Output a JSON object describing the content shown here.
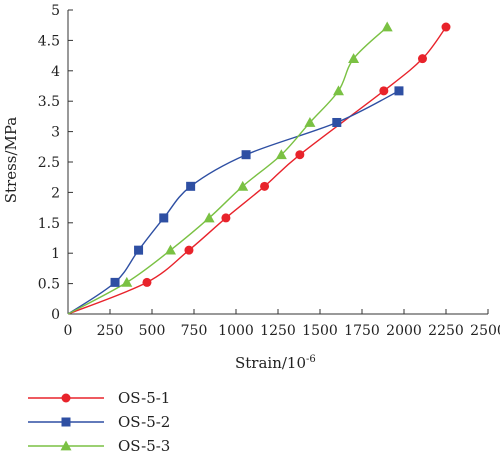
{
  "chart_data": {
    "type": "line",
    "xlabel": "Strain/10",
    "xlabel_sup": "-6",
    "ylabel": "Stress/MPa",
    "xlim": [
      0,
      2500
    ],
    "ylim": [
      0,
      5
    ],
    "xticks": [
      0,
      250,
      500,
      750,
      1000,
      1250,
      1500,
      1750,
      2000,
      2250,
      2500
    ],
    "yticks": [
      0,
      0.5,
      1,
      1.5,
      2,
      2.5,
      3,
      3.5,
      4,
      4.5,
      5
    ],
    "grid": false,
    "legend_position": "bottom-left",
    "series": [
      {
        "name": "OS-5-1",
        "color": "#e8232b",
        "marker": "circle",
        "points": [
          [
            0,
            0
          ],
          [
            470,
            0.52
          ],
          [
            720,
            1.05
          ],
          [
            940,
            1.58
          ],
          [
            1170,
            2.1
          ],
          [
            1380,
            2.62
          ],
          [
            1880,
            3.67
          ],
          [
            2110,
            4.2
          ],
          [
            2250,
            4.72
          ]
        ]
      },
      {
        "name": "OS-5-2",
        "color": "#2e4fa3",
        "marker": "square",
        "points": [
          [
            0,
            0
          ],
          [
            280,
            0.52
          ],
          [
            420,
            1.05
          ],
          [
            570,
            1.58
          ],
          [
            730,
            2.1
          ],
          [
            1060,
            2.62
          ],
          [
            1600,
            3.15
          ],
          [
            1970,
            3.67
          ]
        ]
      },
      {
        "name": "OS-5-3",
        "color": "#7ac143",
        "marker": "triangle",
        "points": [
          [
            0,
            0
          ],
          [
            350,
            0.52
          ],
          [
            610,
            1.05
          ],
          [
            840,
            1.58
          ],
          [
            1040,
            2.1
          ],
          [
            1270,
            2.62
          ],
          [
            1440,
            3.15
          ],
          [
            1610,
            3.67
          ],
          [
            1700,
            4.2
          ],
          [
            1900,
            4.72
          ]
        ]
      }
    ]
  }
}
